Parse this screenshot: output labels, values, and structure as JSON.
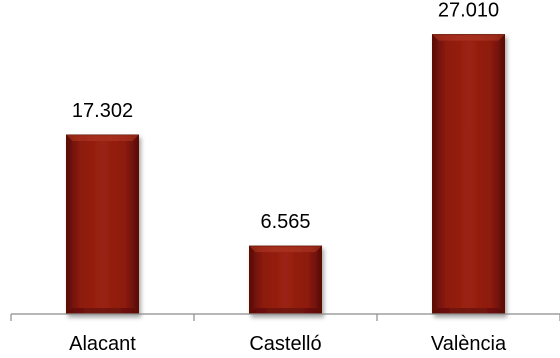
{
  "chart_data": {
    "type": "bar",
    "categories": [
      "Alacant",
      "Castelló",
      "València"
    ],
    "values": [
      17302,
      6565,
      27010
    ],
    "value_labels": [
      "17.302",
      "6.565",
      "27.010"
    ],
    "ylim": [
      0,
      29000
    ],
    "grid": false,
    "legend": "none",
    "colors": {
      "bar": "#8b1a0f",
      "bar_dark": "#5a0c05",
      "bar_light": "#b23a25",
      "axis": "#8c8c8c"
    }
  }
}
